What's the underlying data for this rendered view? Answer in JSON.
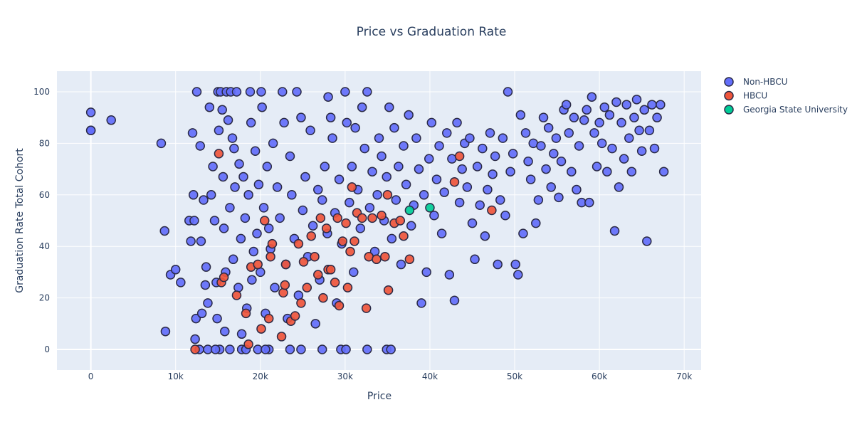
{
  "chart_data": {
    "type": "scatter",
    "title": "Price vs Graduation Rate",
    "xlabel": "Price",
    "ylabel": "Graduation Rate Total Cohort",
    "xlim": [
      -4000,
      72000
    ],
    "ylim": [
      -8,
      108
    ],
    "xticks": [
      0,
      10000,
      20000,
      30000,
      40000,
      50000,
      60000,
      70000
    ],
    "xtick_labels": [
      "0",
      "10k",
      "20k",
      "30k",
      "40k",
      "50k",
      "60k",
      "70k"
    ],
    "yticks": [
      0,
      20,
      40,
      60,
      80,
      100
    ],
    "ytick_labels": [
      "0",
      "20",
      "40",
      "60",
      "80",
      "100"
    ],
    "grid": true,
    "legend_position": "top-right",
    "series": [
      {
        "name": "Non-HBCU",
        "color": "#636efa",
        "points": [
          [
            0,
            92
          ],
          [
            0,
            85
          ],
          [
            0,
            85
          ],
          [
            2400,
            89
          ],
          [
            8300,
            80
          ],
          [
            8700,
            46
          ],
          [
            8800,
            7
          ],
          [
            9400,
            29
          ],
          [
            10000,
            31
          ],
          [
            10600,
            26
          ],
          [
            11600,
            50
          ],
          [
            11800,
            42
          ],
          [
            12000,
            84
          ],
          [
            12100,
            60
          ],
          [
            12200,
            50
          ],
          [
            12300,
            4
          ],
          [
            12400,
            12
          ],
          [
            12500,
            100
          ],
          [
            12900,
            79
          ],
          [
            13000,
            42
          ],
          [
            13100,
            14
          ],
          [
            13300,
            58
          ],
          [
            13500,
            25
          ],
          [
            13600,
            32
          ],
          [
            13800,
            18
          ],
          [
            14000,
            94
          ],
          [
            14200,
            60
          ],
          [
            14400,
            71
          ],
          [
            14600,
            50
          ],
          [
            14800,
            26
          ],
          [
            14900,
            12
          ],
          [
            15000,
            100
          ],
          [
            15100,
            85
          ],
          [
            15300,
            100
          ],
          [
            15500,
            93
          ],
          [
            15600,
            67
          ],
          [
            15700,
            47
          ],
          [
            15800,
            7
          ],
          [
            15900,
            30
          ],
          [
            16000,
            100
          ],
          [
            16200,
            89
          ],
          [
            16400,
            55
          ],
          [
            16500,
            100
          ],
          [
            16700,
            82
          ],
          [
            16800,
            35
          ],
          [
            16900,
            78
          ],
          [
            17000,
            63
          ],
          [
            17200,
            100
          ],
          [
            17400,
            24
          ],
          [
            17500,
            72
          ],
          [
            17700,
            43
          ],
          [
            17800,
            6
          ],
          [
            18000,
            67
          ],
          [
            18200,
            51
          ],
          [
            18400,
            16
          ],
          [
            18600,
            60
          ],
          [
            18800,
            100
          ],
          [
            18900,
            88
          ],
          [
            19000,
            27
          ],
          [
            19200,
            38
          ],
          [
            19400,
            77
          ],
          [
            19600,
            45
          ],
          [
            19800,
            64
          ],
          [
            20000,
            30
          ],
          [
            20100,
            100
          ],
          [
            20200,
            94
          ],
          [
            20400,
            55
          ],
          [
            20600,
            14
          ],
          [
            20800,
            71
          ],
          [
            21000,
            47
          ],
          [
            21200,
            39
          ],
          [
            21500,
            80
          ],
          [
            21700,
            24
          ],
          [
            22000,
            63
          ],
          [
            22300,
            51
          ],
          [
            22600,
            100
          ],
          [
            22800,
            88
          ],
          [
            23000,
            33
          ],
          [
            23200,
            12
          ],
          [
            23500,
            75
          ],
          [
            23700,
            60
          ],
          [
            24000,
            43
          ],
          [
            24300,
            100
          ],
          [
            24500,
            21
          ],
          [
            24800,
            90
          ],
          [
            25000,
            54
          ],
          [
            25300,
            67
          ],
          [
            25600,
            36
          ],
          [
            25900,
            85
          ],
          [
            26200,
            48
          ],
          [
            26500,
            10
          ],
          [
            26800,
            62
          ],
          [
            27000,
            27
          ],
          [
            27300,
            58
          ],
          [
            27600,
            71
          ],
          [
            27900,
            45
          ],
          [
            28000,
            98
          ],
          [
            28300,
            90
          ],
          [
            28500,
            82
          ],
          [
            28800,
            53
          ],
          [
            29000,
            18
          ],
          [
            29300,
            66
          ],
          [
            29600,
            41
          ],
          [
            30000,
            100
          ],
          [
            30200,
            88
          ],
          [
            30500,
            57
          ],
          [
            30800,
            71
          ],
          [
            31000,
            30
          ],
          [
            31200,
            86
          ],
          [
            31500,
            62
          ],
          [
            31800,
            47
          ],
          [
            32000,
            94
          ],
          [
            32300,
            78
          ],
          [
            32600,
            100
          ],
          [
            32900,
            55
          ],
          [
            33200,
            69
          ],
          [
            33500,
            38
          ],
          [
            33800,
            60
          ],
          [
            34000,
            82
          ],
          [
            34300,
            75
          ],
          [
            34600,
            50
          ],
          [
            34900,
            67
          ],
          [
            35200,
            94
          ],
          [
            35500,
            43
          ],
          [
            35800,
            86
          ],
          [
            36000,
            58
          ],
          [
            36300,
            71
          ],
          [
            36600,
            33
          ],
          [
            36900,
            79
          ],
          [
            37200,
            64
          ],
          [
            37500,
            91
          ],
          [
            37800,
            48
          ],
          [
            38100,
            56
          ],
          [
            38400,
            82
          ],
          [
            38700,
            70
          ],
          [
            39000,
            18
          ],
          [
            39300,
            60
          ],
          [
            39600,
            30
          ],
          [
            39900,
            74
          ],
          [
            40200,
            88
          ],
          [
            40500,
            52
          ],
          [
            40800,
            66
          ],
          [
            41100,
            79
          ],
          [
            41400,
            45
          ],
          [
            41700,
            61
          ],
          [
            42000,
            84
          ],
          [
            42300,
            29
          ],
          [
            42600,
            74
          ],
          [
            42900,
            19
          ],
          [
            43200,
            88
          ],
          [
            43500,
            57
          ],
          [
            43800,
            70
          ],
          [
            44100,
            80
          ],
          [
            44400,
            63
          ],
          [
            44700,
            82
          ],
          [
            45000,
            49
          ],
          [
            45300,
            35
          ],
          [
            45600,
            71
          ],
          [
            45900,
            56
          ],
          [
            46200,
            78
          ],
          [
            46500,
            44
          ],
          [
            46800,
            62
          ],
          [
            47100,
            84
          ],
          [
            47400,
            68
          ],
          [
            47700,
            75
          ],
          [
            48000,
            33
          ],
          [
            48300,
            58
          ],
          [
            48600,
            82
          ],
          [
            48900,
            52
          ],
          [
            49200,
            100
          ],
          [
            49500,
            69
          ],
          [
            49800,
            76
          ],
          [
            50100,
            33
          ],
          [
            50400,
            29
          ],
          [
            50700,
            91
          ],
          [
            51000,
            45
          ],
          [
            51300,
            84
          ],
          [
            51600,
            73
          ],
          [
            51900,
            66
          ],
          [
            52200,
            80
          ],
          [
            52500,
            49
          ],
          [
            52800,
            58
          ],
          [
            53100,
            79
          ],
          [
            53400,
            90
          ],
          [
            53700,
            70
          ],
          [
            54000,
            86
          ],
          [
            54300,
            63
          ],
          [
            54600,
            76
          ],
          [
            54900,
            82
          ],
          [
            55200,
            59
          ],
          [
            55500,
            73
          ],
          [
            55800,
            93
          ],
          [
            56100,
            95
          ],
          [
            56400,
            84
          ],
          [
            56700,
            69
          ],
          [
            57000,
            90
          ],
          [
            57300,
            62
          ],
          [
            57600,
            79
          ],
          [
            57900,
            57
          ],
          [
            58200,
            89
          ],
          [
            58500,
            93
          ],
          [
            58800,
            57
          ],
          [
            59100,
            98
          ],
          [
            59400,
            84
          ],
          [
            59700,
            71
          ],
          [
            60000,
            88
          ],
          [
            60300,
            80
          ],
          [
            60600,
            94
          ],
          [
            60900,
            69
          ],
          [
            61200,
            91
          ],
          [
            61500,
            78
          ],
          [
            61800,
            46
          ],
          [
            62000,
            96
          ],
          [
            62300,
            63
          ],
          [
            62600,
            88
          ],
          [
            62900,
            74
          ],
          [
            63200,
            95
          ],
          [
            63500,
            82
          ],
          [
            63800,
            69
          ],
          [
            64100,
            90
          ],
          [
            64400,
            97
          ],
          [
            64700,
            85
          ],
          [
            65000,
            77
          ],
          [
            65300,
            93
          ],
          [
            65600,
            42
          ],
          [
            65900,
            85
          ],
          [
            66200,
            95
          ],
          [
            66500,
            78
          ],
          [
            66800,
            90
          ],
          [
            67200,
            95
          ],
          [
            67600,
            69
          ],
          [
            13800,
            0
          ],
          [
            15200,
            0
          ],
          [
            16400,
            0
          ],
          [
            17800,
            0
          ],
          [
            18300,
            0
          ],
          [
            19700,
            0
          ],
          [
            21000,
            0
          ],
          [
            23500,
            0
          ],
          [
            24800,
            0
          ],
          [
            27300,
            0
          ],
          [
            29500,
            0
          ],
          [
            30100,
            0
          ],
          [
            32600,
            0
          ],
          [
            34900,
            0
          ],
          [
            35400,
            0
          ],
          [
            12800,
            0
          ],
          [
            14700,
            0
          ],
          [
            20600,
            0
          ]
        ]
      },
      {
        "name": "HBCU",
        "color": "#ef553b",
        "points": [
          [
            12300,
            0
          ],
          [
            15100,
            76
          ],
          [
            15400,
            26
          ],
          [
            15700,
            28
          ],
          [
            17200,
            21
          ],
          [
            18300,
            14
          ],
          [
            18600,
            2
          ],
          [
            18900,
            32
          ],
          [
            19700,
            33
          ],
          [
            20100,
            8
          ],
          [
            20500,
            50
          ],
          [
            21000,
            12
          ],
          [
            21200,
            36
          ],
          [
            21400,
            41
          ],
          [
            22500,
            5
          ],
          [
            22700,
            22
          ],
          [
            22900,
            25
          ],
          [
            23000,
            33
          ],
          [
            23600,
            11
          ],
          [
            24100,
            13
          ],
          [
            24500,
            41
          ],
          [
            24800,
            18
          ],
          [
            25100,
            34
          ],
          [
            25500,
            24
          ],
          [
            26000,
            44
          ],
          [
            26400,
            36
          ],
          [
            26800,
            29
          ],
          [
            27100,
            51
          ],
          [
            27400,
            20
          ],
          [
            27800,
            47
          ],
          [
            28000,
            31
          ],
          [
            28300,
            31
          ],
          [
            28800,
            26
          ],
          [
            29100,
            51
          ],
          [
            29300,
            17
          ],
          [
            29700,
            42
          ],
          [
            30100,
            49
          ],
          [
            30300,
            24
          ],
          [
            30600,
            38
          ],
          [
            30800,
            63
          ],
          [
            31100,
            42
          ],
          [
            31400,
            53
          ],
          [
            32000,
            51
          ],
          [
            32500,
            16
          ],
          [
            32800,
            36
          ],
          [
            33200,
            51
          ],
          [
            33700,
            35
          ],
          [
            34300,
            52
          ],
          [
            34700,
            36
          ],
          [
            35000,
            60
          ],
          [
            35100,
            23
          ],
          [
            35800,
            49
          ],
          [
            36500,
            50
          ],
          [
            36900,
            44
          ],
          [
            37600,
            35
          ],
          [
            42900,
            65
          ],
          [
            43500,
            75
          ],
          [
            47300,
            54
          ]
        ]
      },
      {
        "name": "Georgia State University",
        "color": "#00cc96",
        "points": [
          [
            37600,
            54
          ],
          [
            40000,
            55
          ]
        ]
      }
    ]
  }
}
